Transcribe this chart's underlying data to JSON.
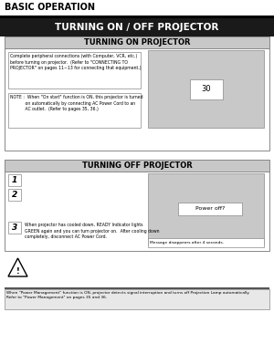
{
  "bg_color": "#000000",
  "white": "#ffffff",
  "light_gray": "#c8c8c8",
  "med_gray": "#b0b0b0",
  "dark_bar": "#1a1a1a",
  "border_color": "#888888",
  "text_color": "#000000",
  "header_text": "BASIC OPERATION",
  "main_title": "TURNING ON / OFF PROJECTOR",
  "section1_title": "TURNING ON PROJECTOR",
  "section2_title": "TURNING OFF PROJECTOR",
  "box1_text": "Complete peripheral connections (with Computer, VCR, etc.)\nbefore turning on projector.  (Refer to \"CONNECTING TO\nPROJECTOR\" on pages 11~13 for connecting that equipment.)",
  "note_text": "NOTE :  When \"On start\" function is ON, this projector is turned\n           on automatically by connecting AC Power Cord to an\n           AC outlet.  (Refer to pages 35, 36.)",
  "countdown": "30",
  "step1": "1",
  "step2": "2",
  "step3": "3",
  "step3_text": "When projector has cooled down, READY Indicator lights\nGREEN again and you can turn projector on.  After cooling down\ncompletely, disconnect AC Power Cord.",
  "poweroff_text": "Power off?",
  "message_text": "Message disappears after 4 seconds.",
  "note2_text": "When \"Power Management\" function is ON, projector detects signal interruption and turns off Projection Lamp automatically.\nRefer to \"Power Management\" on pages 35 and 36."
}
